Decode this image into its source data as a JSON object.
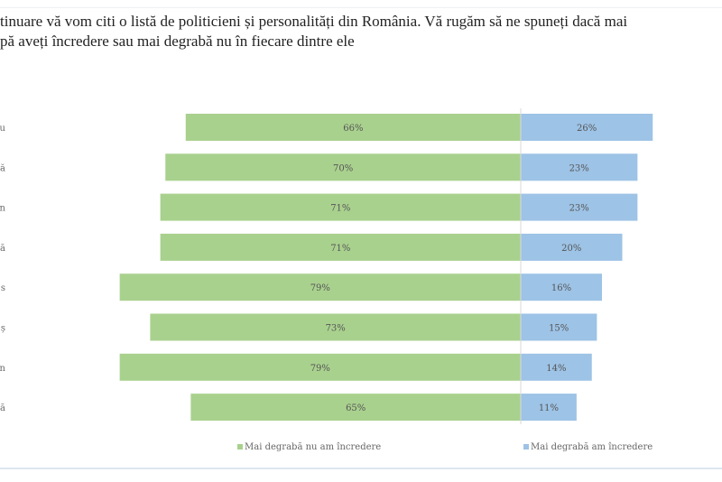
{
  "title_line1": "tinuare vă vom citi o listă de politicieni și personalități din România. Vă rugăm să ne spuneți dacă mai",
  "title_line2": "pă aveți încredere sau mai degrabă nu în fiecare dintre ele",
  "chart_data": {
    "type": "bar",
    "orientation": "horizontal-diverging",
    "categories": [
      "u",
      "ă",
      "n",
      "ă",
      "s",
      "ș",
      "n",
      "ă"
    ],
    "series": [
      {
        "name": "Mai degrabă nu am încredere",
        "color": "#a9d18e",
        "values": [
          66,
          70,
          71,
          71,
          79,
          73,
          79,
          65
        ]
      },
      {
        "name": "Mai degrabă am încredere",
        "color": "#9dc3e6",
        "values": [
          26,
          23,
          23,
          20,
          16,
          15,
          14,
          11
        ]
      }
    ],
    "value_format": "percent",
    "legend": "bottom",
    "grid": false
  }
}
